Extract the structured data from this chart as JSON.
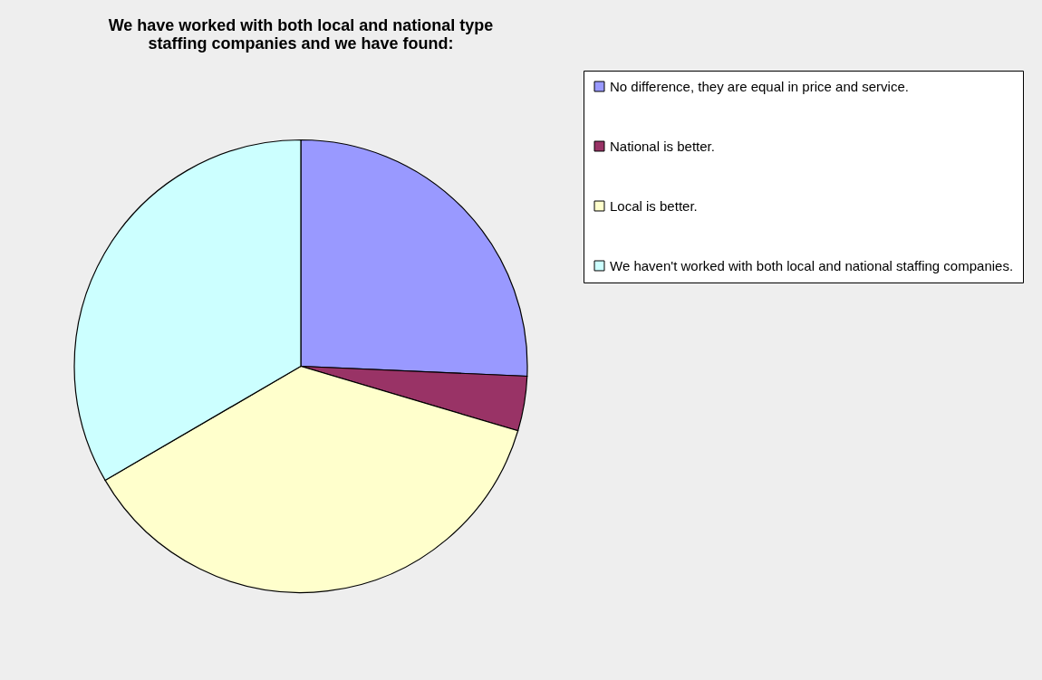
{
  "chart_data": {
    "type": "pie",
    "title": "We have worked with both local and national type staffing companies and we have found:",
    "categories": [
      "No difference, they are equal in price and service.",
      "National is better.",
      "Local is better.",
      "We haven't worked with both local and national staffing companies."
    ],
    "values": [
      25.7,
      3.9,
      37.0,
      33.4
    ],
    "colors": [
      "#9999ff",
      "#993366",
      "#ffffcc",
      "#ccffff"
    ],
    "legend": "right"
  }
}
